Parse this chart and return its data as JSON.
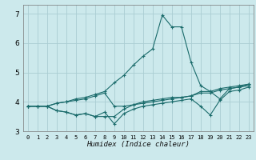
{
  "xlabel": "Humidex (Indice chaleur)",
  "background_color": "#cce9ec",
  "grid_color": "#aacdd2",
  "line_color": "#1a6b6b",
  "xlim": [
    -0.5,
    23.5
  ],
  "ylim": [
    3.0,
    7.3
  ],
  "yticks": [
    3,
    4,
    5,
    6,
    7
  ],
  "xticks": [
    0,
    1,
    2,
    3,
    4,
    5,
    6,
    7,
    8,
    9,
    10,
    11,
    12,
    13,
    14,
    15,
    16,
    17,
    18,
    19,
    20,
    21,
    22,
    23
  ],
  "lines": [
    [
      3.85,
      3.85,
      3.85,
      3.95,
      4.0,
      4.1,
      4.15,
      4.25,
      4.35,
      4.65,
      4.9,
      5.25,
      5.55,
      5.8,
      6.95,
      6.55,
      6.55,
      5.35,
      4.55,
      4.35,
      4.1,
      4.45,
      4.5,
      4.6
    ],
    [
      3.85,
      3.85,
      3.85,
      3.7,
      3.65,
      3.55,
      3.6,
      3.5,
      3.65,
      3.25,
      3.6,
      3.75,
      3.85,
      3.9,
      3.95,
      4.0,
      4.05,
      4.1,
      3.85,
      3.55,
      4.05,
      4.35,
      4.4,
      4.5
    ],
    [
      3.85,
      3.85,
      3.85,
      3.7,
      3.65,
      3.55,
      3.6,
      3.5,
      3.5,
      3.5,
      3.75,
      3.9,
      4.0,
      4.05,
      4.1,
      4.15,
      4.15,
      4.2,
      4.3,
      4.3,
      4.4,
      4.45,
      4.5,
      4.55
    ],
    [
      3.85,
      3.85,
      3.85,
      3.95,
      4.0,
      4.05,
      4.1,
      4.2,
      4.3,
      3.85,
      3.85,
      3.9,
      3.95,
      4.0,
      4.05,
      4.1,
      4.15,
      4.2,
      4.35,
      4.35,
      4.45,
      4.5,
      4.55,
      4.6
    ]
  ]
}
